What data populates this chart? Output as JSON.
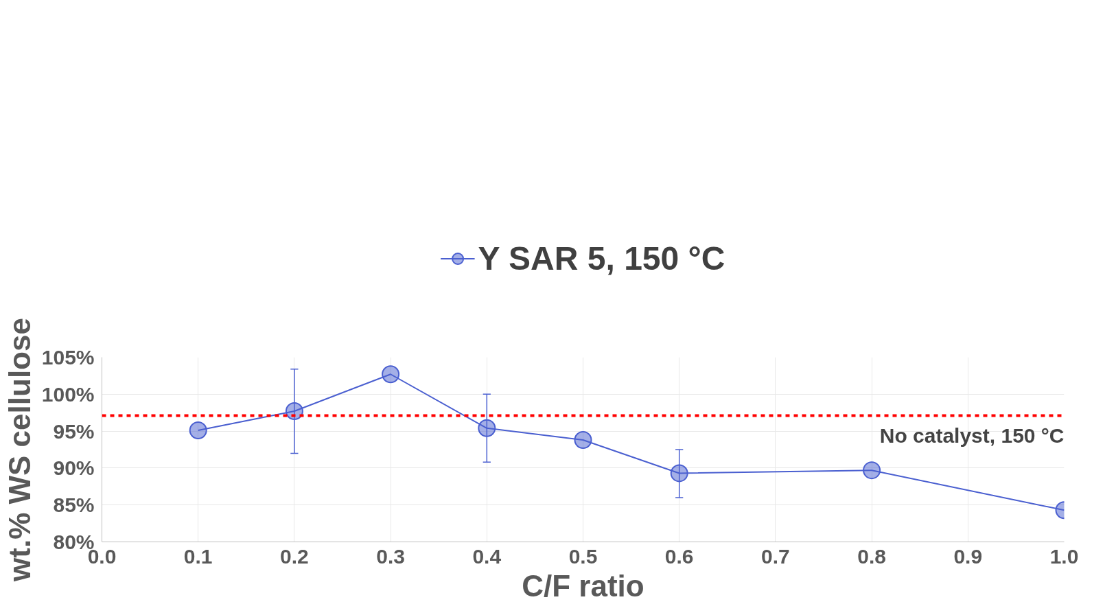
{
  "chart_data": {
    "type": "line",
    "xlabel": "C/F ratio",
    "ylabel": "wt.% WS cellulose",
    "x": [
      0.1,
      0.2,
      0.3,
      0.4,
      0.5,
      0.6,
      0.8,
      1.0
    ],
    "series": [
      {
        "name": "Y SAR 5, 150 °C",
        "color": "#4a5fd0",
        "values": [
          95.1,
          97.7,
          102.7,
          95.4,
          93.8,
          89.3,
          89.7,
          84.3
        ],
        "errors": [
          null,
          [
            92.0,
            103.4
          ],
          null,
          [
            90.8,
            100.0
          ],
          null,
          [
            86.0,
            92.5
          ],
          null,
          null
        ]
      }
    ],
    "xlim": [
      0,
      1
    ],
    "xticks": [
      {
        "value": 0,
        "label": "0.0"
      },
      {
        "value": 0.1,
        "label": "0.1"
      },
      {
        "value": 0.2,
        "label": "0.2"
      },
      {
        "value": 0.3,
        "label": "0.3"
      },
      {
        "value": 0.4,
        "label": "0.4"
      },
      {
        "value": 0.5,
        "label": "0.5"
      },
      {
        "value": 0.6,
        "label": "0.6"
      },
      {
        "value": 0.7,
        "label": "0.7"
      },
      {
        "value": 0.8,
        "label": "0.8"
      },
      {
        "value": 0.9,
        "label": "0.9"
      },
      {
        "value": 1.0,
        "label": "1.0"
      }
    ],
    "ylim": [
      80,
      105
    ],
    "yticks": [
      {
        "value": 80,
        "label": "80%"
      },
      {
        "value": 85,
        "label": "85%"
      },
      {
        "value": 90,
        "label": "90%"
      },
      {
        "value": 95,
        "label": "95%"
      },
      {
        "value": 100,
        "label": "100%"
      },
      {
        "value": 105,
        "label": "105%"
      }
    ],
    "ref_lines": [
      {
        "axis": "y",
        "value": 97.1,
        "label": "No catalyst, 150 °C",
        "color": "#ff0000",
        "line_style": "dashed"
      }
    ],
    "grid": true,
    "legend": "top",
    "marker": "circle",
    "line_style": "solid"
  }
}
